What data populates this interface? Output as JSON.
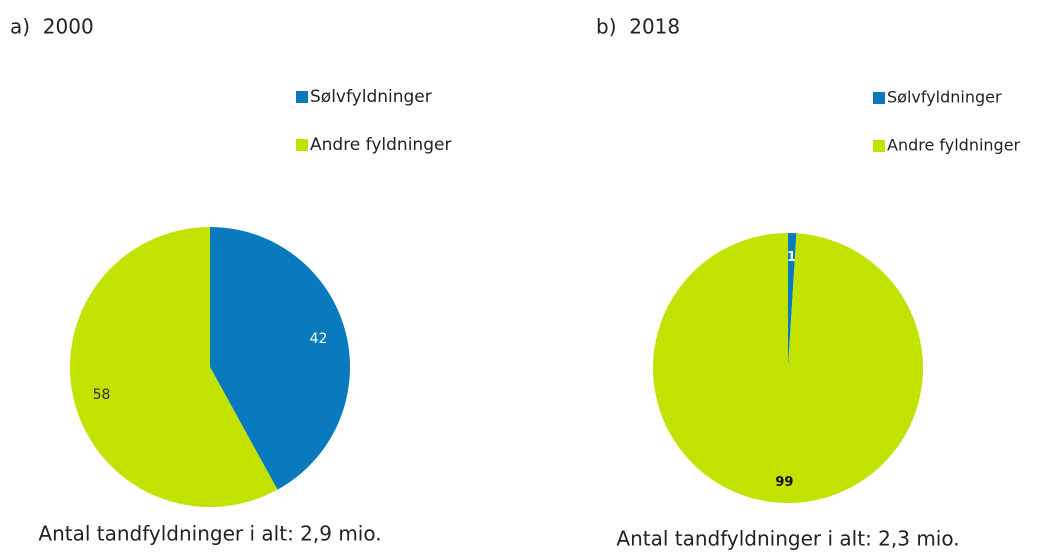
{
  "chart_data": [
    {
      "type": "pie",
      "title": "a)  2000",
      "categories": [
        "Sølvfyldninger",
        "Andre fyldninger"
      ],
      "values": [
        42,
        58
      ],
      "colors": [
        "#0a7abf",
        "#c2e300"
      ],
      "note": "Antal tandfyldninger i alt: 2,9 mio."
    },
    {
      "type": "pie",
      "title": "b)  2018",
      "categories": [
        "Sølvfyldninger",
        "Andre fyldninger"
      ],
      "values": [
        1,
        99
      ],
      "colors": [
        "#0a7abf",
        "#c2e300"
      ],
      "note": "Antal tandfyldninger i alt: 2,3 mio."
    }
  ]
}
